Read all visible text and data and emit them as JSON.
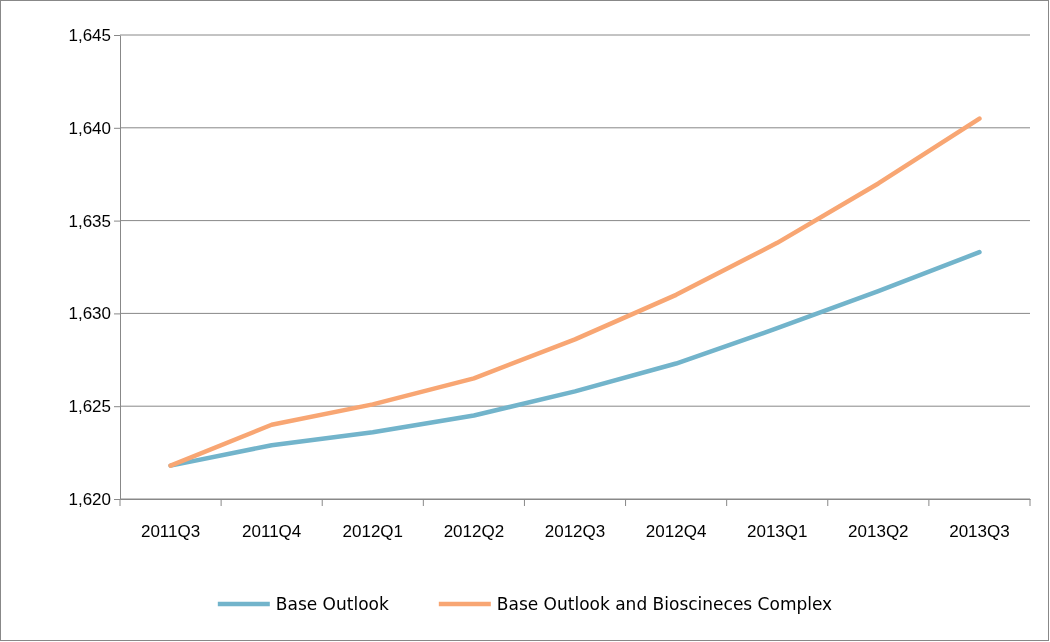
{
  "chart_data": {
    "type": "line",
    "categories": [
      "2011Q3",
      "2011Q4",
      "2012Q1",
      "2012Q2",
      "2012Q3",
      "2012Q4",
      "2013Q1",
      "2013Q2",
      "2013Q3"
    ],
    "series": [
      {
        "name": "Base Outlook",
        "color": "#72b4cb",
        "values": [
          1621.8,
          1622.9,
          1623.6,
          1624.5,
          1625.8,
          1627.3,
          1629.2,
          1631.2,
          1633.3
        ]
      },
      {
        "name": "Base Outlook and Bioscineces Complex",
        "color": "#f8a673",
        "values": [
          1621.8,
          1624.0,
          1625.1,
          1626.5,
          1628.6,
          1631.0,
          1633.8,
          1637.0,
          1640.5
        ]
      }
    ],
    "ylim": [
      1620,
      1645
    ],
    "yticks": [
      {
        "value": 1620,
        "label": "1,620"
      },
      {
        "value": 1625,
        "label": "1,625"
      },
      {
        "value": 1630,
        "label": "1,630"
      },
      {
        "value": 1635,
        "label": "1,635"
      },
      {
        "value": 1640,
        "label": "1,640"
      },
      {
        "value": 1645,
        "label": "1,645"
      }
    ],
    "grid": "y",
    "legend": "bottom",
    "marker": "none",
    "line_style": "solid"
  }
}
